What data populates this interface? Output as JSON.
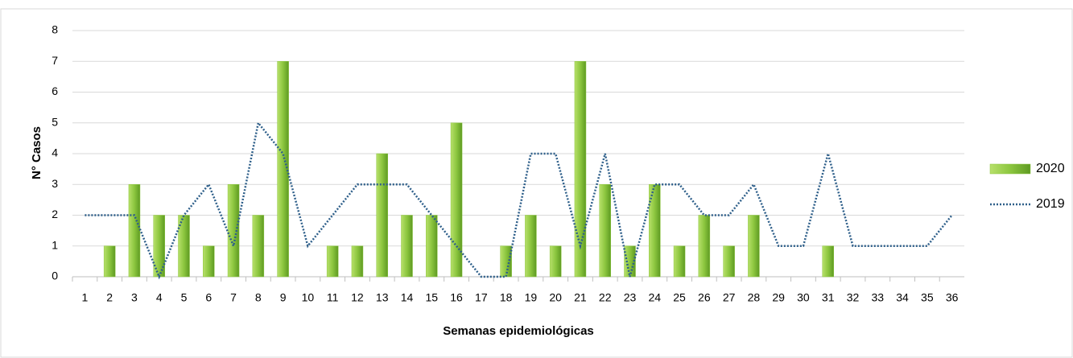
{
  "chart_data": {
    "type": "bar-line",
    "x_label": "Semanas epidemiológicas",
    "y_label": "N° Casos",
    "categories": [
      1,
      2,
      3,
      4,
      5,
      6,
      7,
      8,
      9,
      10,
      11,
      12,
      13,
      14,
      15,
      16,
      17,
      18,
      19,
      20,
      21,
      22,
      23,
      24,
      25,
      26,
      27,
      28,
      29,
      30,
      31,
      32,
      33,
      34,
      35,
      36
    ],
    "series": [
      {
        "name": "2020",
        "type": "bar",
        "color": "#8cc63f",
        "values": [
          0,
          1,
          3,
          2,
          2,
          1,
          3,
          2,
          7,
          0,
          1,
          1,
          4,
          2,
          2,
          5,
          0,
          1,
          2,
          1,
          7,
          3,
          1,
          3,
          1,
          2,
          1,
          2,
          0,
          0,
          1,
          0,
          0,
          0,
          0,
          0
        ]
      },
      {
        "name": "2019",
        "type": "line",
        "color": "#2e5f8a",
        "values": [
          2,
          2,
          2,
          0,
          2,
          3,
          1,
          5,
          4,
          1,
          2,
          3,
          3,
          3,
          2,
          1,
          0,
          0,
          4,
          4,
          1,
          4,
          0,
          3,
          3,
          2,
          2,
          3,
          1,
          1,
          4,
          1,
          1,
          1,
          1,
          2
        ]
      }
    ],
    "ylim": [
      0,
      8
    ],
    "yticks": [
      0,
      1,
      2,
      3,
      4,
      5,
      6,
      7,
      8
    ],
    "grid": true,
    "legend": "right"
  }
}
